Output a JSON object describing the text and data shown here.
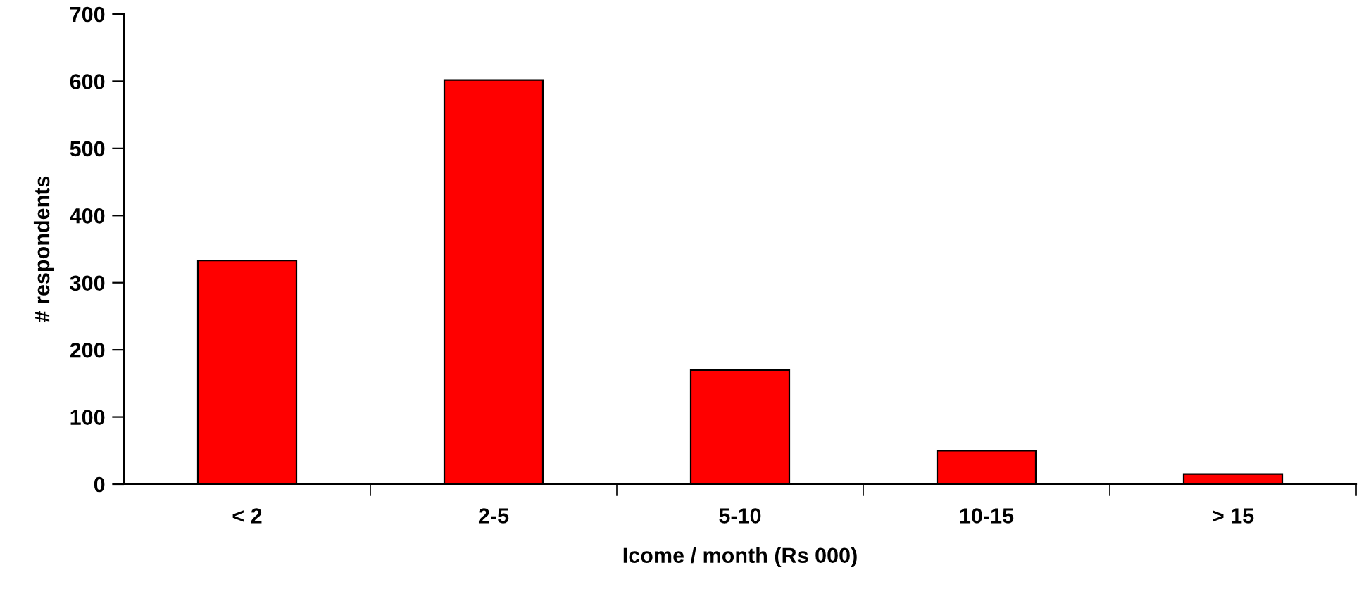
{
  "chart_data": {
    "type": "bar",
    "xlabel": "Icome / month (Rs 000)",
    "ylabel": "# respondents",
    "categories": [
      "< 2",
      "2-5",
      "5-10",
      "10-15",
      "> 15"
    ],
    "values": [
      333,
      602,
      170,
      50,
      15
    ],
    "color": "#ff0000",
    "ylim": [
      0,
      700
    ],
    "yticks": [
      0,
      100,
      200,
      300,
      400,
      500,
      600,
      700
    ],
    "grid": false,
    "legend": false
  }
}
